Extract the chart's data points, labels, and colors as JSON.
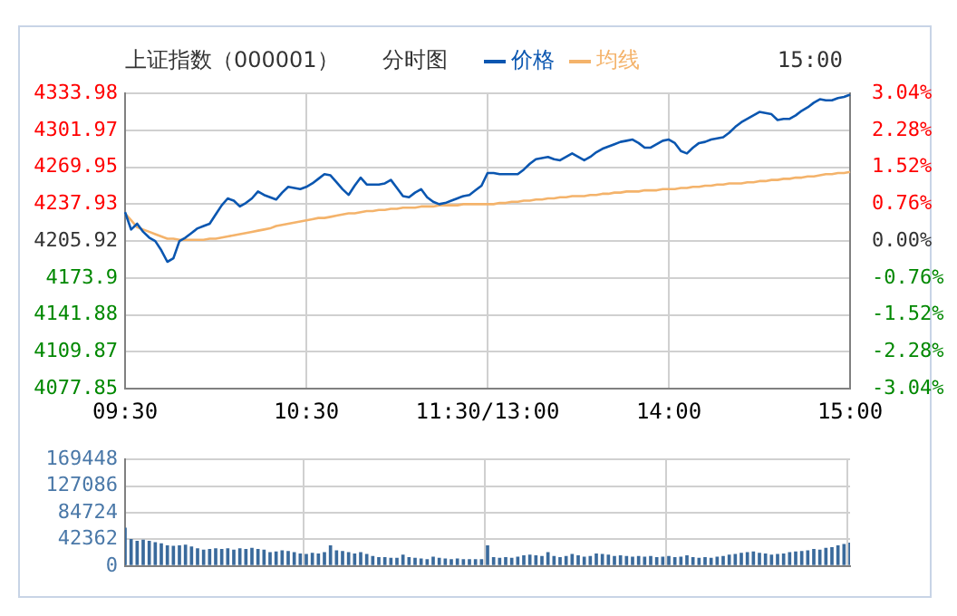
{
  "chart_data": [
    {
      "type": "line",
      "title": "上证指数（000001）",
      "subtitle": "分时图",
      "annotations": [
        "15:00"
      ],
      "legend": "top",
      "grid": true,
      "categories": [
        "09:30",
        null,
        null,
        null,
        null,
        null,
        null,
        null,
        null,
        null,
        null,
        null,
        null,
        null,
        null,
        null,
        null,
        null,
        null,
        null,
        null,
        null,
        null,
        null,
        null,
        null,
        null,
        null,
        null,
        null,
        "10:30",
        null,
        null,
        null,
        null,
        null,
        null,
        null,
        null,
        null,
        null,
        null,
        null,
        null,
        null,
        null,
        null,
        null,
        null,
        null,
        null,
        null,
        null,
        null,
        null,
        null,
        null,
        null,
        null,
        null,
        "11:30/13:00",
        null,
        null,
        null,
        null,
        null,
        null,
        null,
        null,
        null,
        null,
        null,
        null,
        null,
        null,
        null,
        null,
        null,
        null,
        null,
        null,
        null,
        null,
        null,
        null,
        null,
        null,
        null,
        null,
        null,
        "14:00",
        null,
        null,
        null,
        null,
        null,
        null,
        null,
        null,
        null,
        null,
        null,
        null,
        null,
        null,
        null,
        null,
        null,
        null,
        null,
        null,
        null,
        null,
        null,
        null,
        null,
        null,
        null,
        null,
        null,
        "15:00"
      ],
      "ylim": [
        4077.85,
        4333.98
      ],
      "yticks": [
        4077.85,
        4109.87,
        4141.88,
        4173.9,
        4205.92,
        4237.93,
        4269.95,
        4301.97,
        4333.98
      ],
      "y2lim": [
        -3.04,
        3.04
      ],
      "y2ticks": [
        {
          "value": -3.04,
          "label": "-3.04%"
        },
        {
          "value": -2.28,
          "label": "-2.28%"
        },
        {
          "value": -1.52,
          "label": "-1.52%"
        },
        {
          "value": -0.76,
          "label": "-0.76%"
        },
        {
          "value": 0,
          "label": "0.00%"
        },
        {
          "value": 0.76,
          "label": "0.76%"
        },
        {
          "value": 1.52,
          "label": "1.52%"
        },
        {
          "value": 2.28,
          "label": "2.28%"
        },
        {
          "value": 3.04,
          "label": "3.04%"
        }
      ],
      "series": [
        {
          "name": "价格",
          "color": "#0a56b0",
          "values": [
            4231,
            4216,
            4221,
            4214,
            4209,
            4206,
            4198,
            4188,
            4191,
            4206,
            4209,
            4213,
            4217,
            4219,
            4221,
            4229,
            4237,
            4243,
            4241,
            4236,
            4239,
            4243,
            4249,
            4246,
            4244,
            4242,
            4248,
            4253,
            4252,
            4251,
            4253,
            4256,
            4260,
            4264,
            4263,
            4257,
            4251,
            4246,
            4254,
            4261,
            4255,
            4255,
            4255,
            4256,
            4259,
            4252,
            4245,
            4244,
            4248,
            4251,
            4244,
            4240,
            4238,
            4239,
            4241,
            4243,
            4245,
            4246,
            4250,
            4254,
            4265,
            4265,
            4264,
            4264,
            4264,
            4264,
            4268,
            4273,
            4277,
            4278,
            4279,
            4277,
            4276,
            4279,
            4282,
            4279,
            4276,
            4279,
            4283,
            4286,
            4288,
            4290,
            4292,
            4293,
            4294,
            4291,
            4287,
            4287,
            4290,
            4293,
            4294,
            4291,
            4284,
            4282,
            4287,
            4291,
            4292,
            4294,
            4295,
            4296,
            4300,
            4305,
            4309,
            4312,
            4315,
            4318,
            4317,
            4316,
            4311,
            4312,
            4312,
            4315,
            4319,
            4322,
            4326,
            4329,
            4328,
            4328,
            4330,
            4331,
            4333
          ]
        },
        {
          "name": "均线",
          "color": "#f4b36b",
          "values": [
            4230,
            4224,
            4218,
            4216,
            4214,
            4212,
            4210,
            4208,
            4208,
            4207,
            4207,
            4207,
            4207,
            4207,
            4208,
            4208,
            4209,
            4210,
            4211,
            4212,
            4213,
            4214,
            4215,
            4216,
            4217,
            4219,
            4220,
            4221,
            4222,
            4223,
            4224,
            4225,
            4226,
            4226,
            4227,
            4228,
            4229,
            4230,
            4230,
            4231,
            4232,
            4232,
            4233,
            4233,
            4234,
            4234,
            4235,
            4235,
            4235,
            4236,
            4236,
            4236,
            4237,
            4237,
            4237,
            4237,
            4238,
            4238,
            4238,
            4238,
            4238,
            4238,
            4239,
            4239,
            4240,
            4240,
            4241,
            4241,
            4242,
            4242,
            4243,
            4243,
            4244,
            4244,
            4245,
            4245,
            4245,
            4246,
            4246,
            4247,
            4247,
            4248,
            4248,
            4249,
            4249,
            4249,
            4250,
            4250,
            4250,
            4251,
            4251,
            4251,
            4252,
            4252,
            4253,
            4253,
            4254,
            4254,
            4255,
            4255,
            4256,
            4256,
            4256,
            4257,
            4257,
            4258,
            4258,
            4259,
            4259,
            4260,
            4260,
            4261,
            4261,
            4262,
            4262,
            4263,
            4264,
            4264,
            4265,
            4265,
            4266
          ]
        }
      ]
    },
    {
      "type": "bar",
      "grid": true,
      "tick_labels": "y",
      "categories": [
        null,
        null,
        null,
        null,
        null,
        null,
        null,
        null,
        null,
        null,
        null,
        null,
        null,
        null,
        null,
        null,
        null,
        null,
        null,
        null,
        null,
        null,
        null,
        null,
        null,
        null,
        null,
        null,
        null,
        null,
        null,
        null,
        null,
        null,
        null,
        null,
        null,
        null,
        null,
        null,
        null,
        null,
        null,
        null,
        null,
        null,
        null,
        null,
        null,
        null,
        null,
        null,
        null,
        null,
        null,
        null,
        null,
        null,
        null,
        null,
        null,
        null,
        null,
        null,
        null,
        null,
        null,
        null,
        null,
        null,
        null,
        null,
        null,
        null,
        null,
        null,
        null,
        null,
        null,
        null,
        null,
        null,
        null,
        null,
        null,
        null,
        null,
        null,
        null,
        null,
        null,
        null,
        null,
        null,
        null,
        null,
        null,
        null,
        null,
        null,
        null,
        null,
        null,
        null,
        null,
        null,
        null,
        null,
        null,
        null,
        null,
        null,
        null,
        null,
        null,
        null,
        null,
        null,
        null,
        null,
        null
      ],
      "ylim": [
        0,
        169448
      ],
      "yticks": [
        0,
        42362,
        84724,
        127086,
        169448
      ],
      "series": [
        {
          "color": "#3a6a9c",
          "values": [
            61000,
            43000,
            40000,
            42000,
            40000,
            38000,
            36000,
            33000,
            32000,
            33000,
            34000,
            31000,
            28000,
            26000,
            27000,
            28000,
            27000,
            28000,
            26000,
            28000,
            27000,
            29000,
            27000,
            26000,
            22000,
            23000,
            25000,
            24000,
            22000,
            20000,
            19000,
            21000,
            20000,
            22000,
            33000,
            25000,
            24000,
            22000,
            20000,
            22000,
            19000,
            16000,
            14000,
            14000,
            13000,
            13000,
            18000,
            14000,
            13000,
            12000,
            11000,
            15000,
            13000,
            12000,
            11000,
            12000,
            11000,
            11000,
            11000,
            11000,
            33000,
            14000,
            13000,
            14000,
            13000,
            15000,
            17000,
            18000,
            17000,
            16000,
            22000,
            16000,
            14000,
            16000,
            19000,
            17000,
            15000,
            16000,
            20000,
            19000,
            18000,
            16000,
            17000,
            16000,
            15000,
            16000,
            15000,
            16000,
            14000,
            15000,
            16000,
            14000,
            15000,
            17000,
            14000,
            13000,
            14000,
            13000,
            15000,
            16000,
            18000,
            19000,
            21000,
            22000,
            23000,
            21000,
            20000,
            18000,
            19000,
            20000,
            22000,
            23000,
            24000,
            25000,
            27000,
            26000,
            29000,
            30000,
            33000,
            35000,
            37000
          ]
        }
      ]
    }
  ]
}
